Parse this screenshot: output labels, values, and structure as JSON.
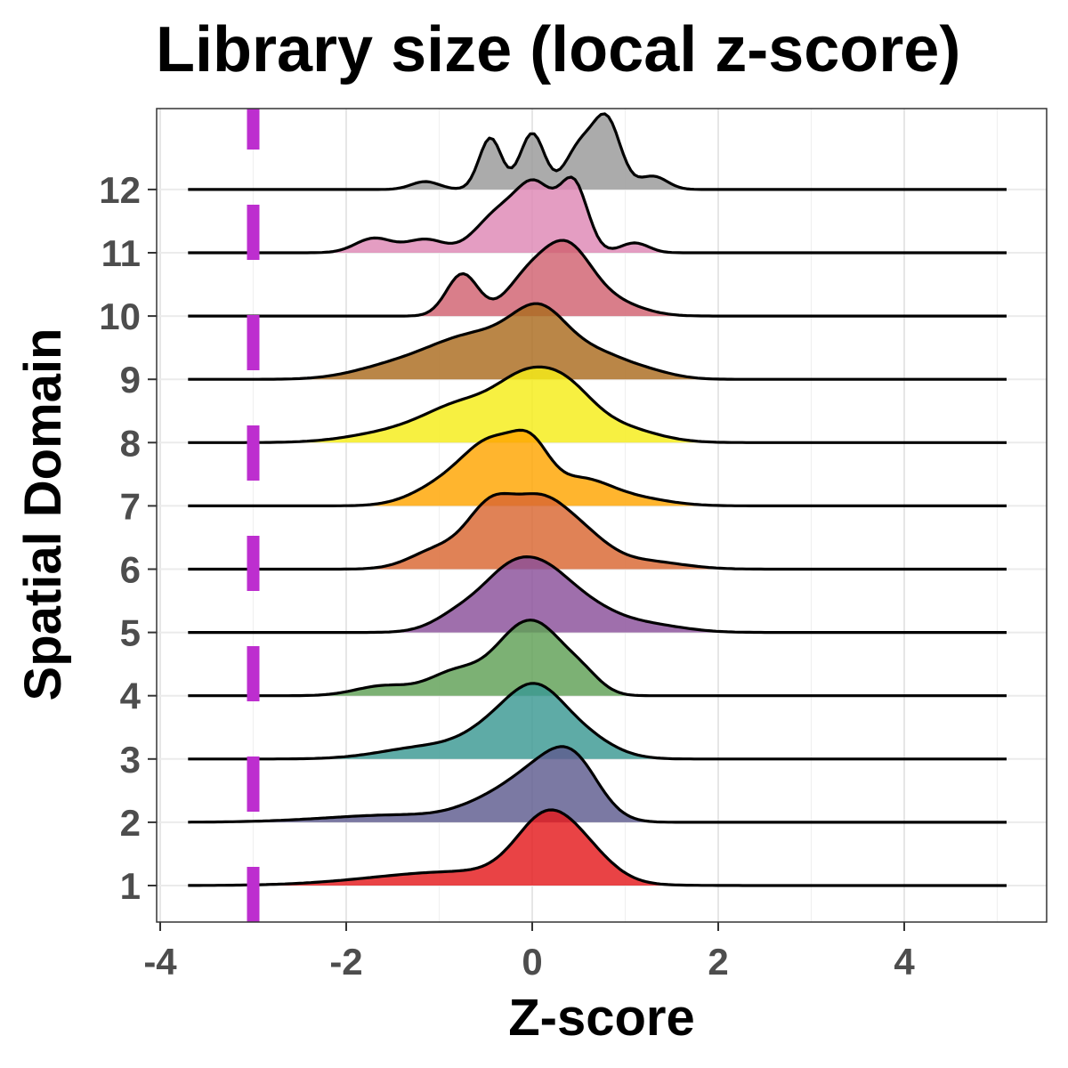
{
  "chart_data": {
    "type": "ridgeline",
    "title": "Library size (local z-score)",
    "xlabel": "Z-score",
    "ylabel": "Spatial Domain",
    "xlim": [
      -4,
      5.5
    ],
    "x_ticks": [
      -4,
      -2,
      0,
      2,
      4
    ],
    "x_tick_labels": [
      "-4",
      "-2",
      "0",
      "2",
      "4"
    ],
    "x_range_of_curves": [
      -3.7,
      5.1
    ],
    "grid": true,
    "threshold": {
      "x": -3,
      "color": "#BD2ECF",
      "style": "dashed"
    },
    "series": [
      {
        "name": "1",
        "color": "#E41A1C",
        "peaks": [
          [
            -0.8,
            0.9,
            0.22
          ],
          [
            0.15,
            0.32,
            0.95
          ],
          [
            0.6,
            0.3,
            0.35
          ]
        ]
      },
      {
        "name": "2",
        "color": "#5E5B8F",
        "peaks": [
          [
            -1.4,
            0.8,
            0.12
          ],
          [
            -0.4,
            0.35,
            0.3
          ],
          [
            0.05,
            0.3,
            0.55
          ],
          [
            0.45,
            0.28,
            0.9
          ]
        ]
      },
      {
        "name": "3",
        "color": "#3B9892",
        "peaks": [
          [
            -1.1,
            0.5,
            0.25
          ],
          [
            -0.3,
            0.35,
            0.7
          ],
          [
            0.05,
            0.28,
            0.8
          ],
          [
            0.45,
            0.35,
            0.55
          ]
        ]
      },
      {
        "name": "4",
        "color": "#5FA055",
        "peaks": [
          [
            -1.6,
            0.3,
            0.15
          ],
          [
            -0.8,
            0.3,
            0.38
          ],
          [
            -0.25,
            0.25,
            0.5
          ],
          [
            0.1,
            0.28,
            0.9
          ],
          [
            0.55,
            0.2,
            0.25
          ]
        ]
      },
      {
        "name": "5",
        "color": "#8A4F9A",
        "peaks": [
          [
            -0.7,
            0.3,
            0.35
          ],
          [
            -0.3,
            0.25,
            0.45
          ],
          [
            0.05,
            0.3,
            0.75
          ],
          [
            0.5,
            0.35,
            0.4
          ],
          [
            1.2,
            0.4,
            0.12
          ]
        ]
      },
      {
        "name": "6",
        "color": "#D96731",
        "peaks": [
          [
            -1.0,
            0.3,
            0.25
          ],
          [
            -0.45,
            0.25,
            0.72
          ],
          [
            0.05,
            0.28,
            0.72
          ],
          [
            0.5,
            0.3,
            0.42
          ],
          [
            1.2,
            0.4,
            0.1
          ]
        ]
      },
      {
        "name": "7",
        "color": "#FFA500",
        "peaks": [
          [
            -0.9,
            0.35,
            0.3
          ],
          [
            -0.4,
            0.3,
            0.75
          ],
          [
            0.0,
            0.2,
            0.55
          ],
          [
            0.5,
            0.3,
            0.3
          ],
          [
            1.0,
            0.4,
            0.12
          ]
        ]
      },
      {
        "name": "8",
        "color": "#F5ED17",
        "peaks": [
          [
            -1.4,
            0.5,
            0.15
          ],
          [
            -0.7,
            0.4,
            0.45
          ],
          [
            -0.1,
            0.3,
            0.6
          ],
          [
            0.35,
            0.3,
            0.6
          ],
          [
            0.9,
            0.4,
            0.2
          ]
        ]
      },
      {
        "name": "9",
        "color": "#AB6B1E",
        "peaks": [
          [
            -1.6,
            0.4,
            0.1
          ],
          [
            -0.6,
            0.55,
            0.55
          ],
          [
            0.1,
            0.3,
            0.65
          ],
          [
            0.7,
            0.3,
            0.25
          ],
          [
            1.2,
            0.3,
            0.1
          ]
        ]
      },
      {
        "name": "10",
        "color": "#D16270",
        "peaks": [
          [
            -0.75,
            0.17,
            0.72
          ],
          [
            -0.1,
            0.22,
            0.45
          ],
          [
            0.35,
            0.28,
            1.2
          ],
          [
            0.9,
            0.3,
            0.2
          ]
        ]
      },
      {
        "name": "11",
        "color": "#DE88B5",
        "peaks": [
          [
            -1.7,
            0.2,
            0.22
          ],
          [
            -1.15,
            0.2,
            0.2
          ],
          [
            -0.35,
            0.25,
            0.6
          ],
          [
            0.05,
            0.2,
            0.9
          ],
          [
            0.45,
            0.15,
            1.0
          ],
          [
            1.1,
            0.15,
            0.15
          ]
        ]
      },
      {
        "name": "12",
        "color": "#999999",
        "peaks": [
          [
            -1.15,
            0.15,
            0.12
          ],
          [
            -0.45,
            0.12,
            0.78
          ],
          [
            0.0,
            0.13,
            0.85
          ],
          [
            0.5,
            0.15,
            0.6
          ],
          [
            0.8,
            0.15,
            1.05
          ],
          [
            1.3,
            0.15,
            0.2
          ]
        ]
      }
    ]
  }
}
